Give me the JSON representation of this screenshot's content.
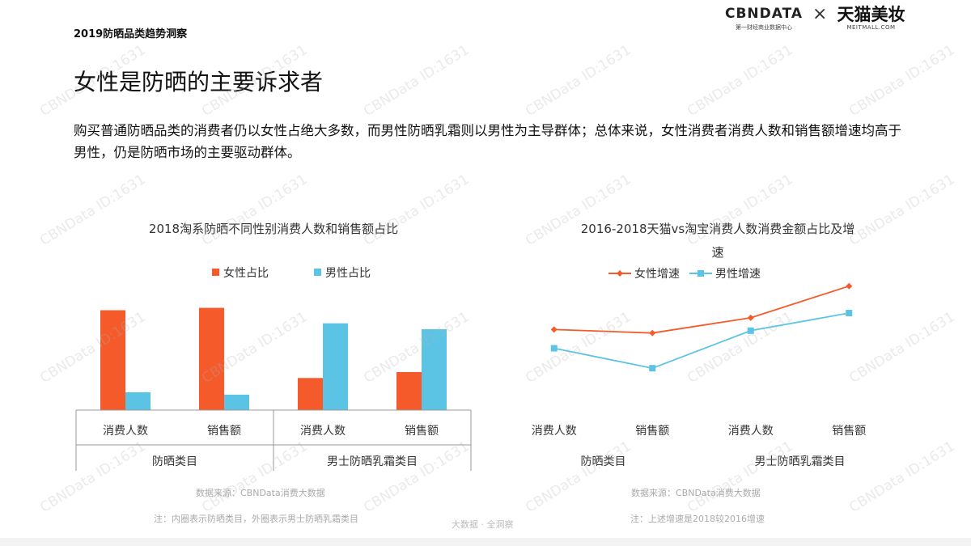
{
  "header": {
    "report_tag": "2019防晒品类趋势洞察",
    "logo_cbn": "CBNDATA",
    "logo_cbn_sub": "第一财经商业数据中心",
    "logo_times": "×",
    "logo_tmall": "天猫美妆",
    "logo_tmall_sub": "MEITMALL.COM"
  },
  "page_title": "女性是防晒的主要诉求者",
  "intro_text": "购买普通防晒品类的消费者仍以女性占绝大多数，而男性防晒乳霜则以男性为主导群体；总体来说，女性消费者消费人数和销售额增速均高于男性，仍是防晒市场的主要驱动群体。",
  "watermark_text": "CBNData ID:1631",
  "center_mark": "大数据 · 全洞察",
  "colors": {
    "female": "#f45a2a",
    "male": "#5bc4e5"
  },
  "chart_data": [
    {
      "type": "bar",
      "title": "2018淘系防晒不同性别消费人数和销售额占比",
      "categories": [
        "消费人数",
        "销售额",
        "消费人数",
        "销售额"
      ],
      "groups": [
        {
          "label": "防晒类目",
          "span": 2
        },
        {
          "label": "男士防晒乳霜类目",
          "span": 2
        }
      ],
      "series": [
        {
          "name": "女性占比",
          "values": [
            0.84,
            0.86,
            0.27,
            0.32
          ]
        },
        {
          "name": "男性占比",
          "values": [
            0.15,
            0.13,
            0.73,
            0.68
          ]
        }
      ],
      "ylim": [
        0,
        1
      ]
    },
    {
      "type": "line",
      "title": "2016-2018天猫vs淘宝消费人数消费金额占比及增速",
      "categories": [
        "消费人数",
        "销售额",
        "消费人数",
        "销售额"
      ],
      "groups": [
        {
          "label": "防晒类目",
          "span": 2
        },
        {
          "label": "男士防晒乳霜类目",
          "span": 2
        }
      ],
      "series": [
        {
          "name": "女性增速",
          "values": [
            0.57,
            0.54,
            0.67,
            0.94
          ]
        },
        {
          "name": "男性增速",
          "values": [
            0.41,
            0.24,
            0.56,
            0.71
          ]
        }
      ],
      "ylim": [
        0,
        1
      ]
    }
  ],
  "notes": {
    "left_source": "数据来源：CBNData消费大数据",
    "left_note": "注：内圈表示防晒类目，外圈表示男士防晒乳霜类目",
    "right_source": "数据来源：CBNData消费大数据",
    "right_note": "注：上述增速是2018较2016增速"
  }
}
